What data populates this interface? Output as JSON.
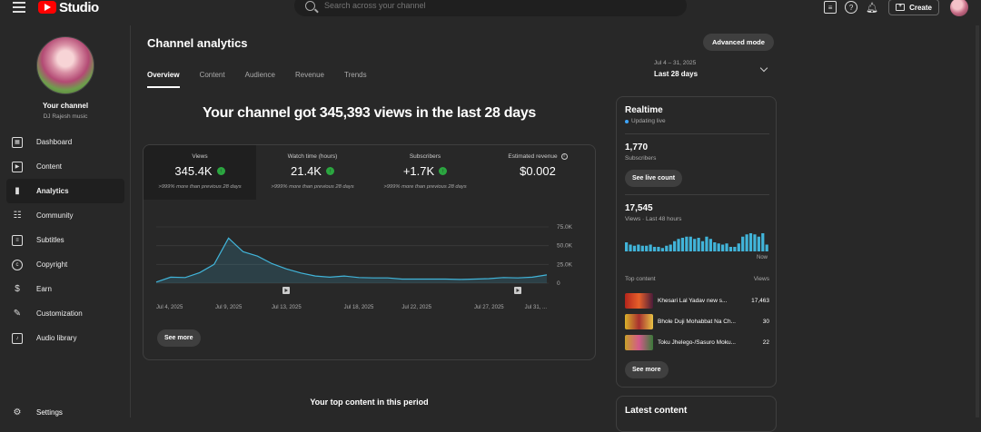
{
  "header": {
    "logo_text": "Studio",
    "search_placeholder": "Search across your channel",
    "create_label": "Create"
  },
  "sidebar": {
    "channel_title": "Your channel",
    "channel_name": "DJ Rajesh music",
    "items": [
      {
        "label": "Dashboard",
        "icon": "dashboard-icon"
      },
      {
        "label": "Content",
        "icon": "content-icon"
      },
      {
        "label": "Analytics",
        "icon": "analytics-icon",
        "active": true
      },
      {
        "label": "Community",
        "icon": "community-icon"
      },
      {
        "label": "Subtitles",
        "icon": "subtitles-icon"
      },
      {
        "label": "Copyright",
        "icon": "copyright-icon"
      },
      {
        "label": "Earn",
        "icon": "earn-icon"
      },
      {
        "label": "Customization",
        "icon": "customization-icon"
      },
      {
        "label": "Audio library",
        "icon": "audio-library-icon"
      }
    ],
    "settings_label": "Settings"
  },
  "main": {
    "title": "Channel analytics",
    "advanced_mode": "Advanced mode",
    "tabs": [
      "Overview",
      "Content",
      "Audience",
      "Revenue",
      "Trends"
    ],
    "date_range": "Jul 4 – 31, 2025",
    "date_label": "Last 28 days",
    "headline": "Your channel got 345,393 views in the last 28 days",
    "metrics": [
      {
        "label": "Views",
        "value": "345.4K",
        "compare": ">999% more than previous 28 days",
        "up": true
      },
      {
        "label": "Watch time (hours)",
        "value": "21.4K",
        "compare": ">999% more than previous 28 days",
        "up": true
      },
      {
        "label": "Subscribers",
        "value": "+1.7K",
        "compare": ">999% more than previous 28 days",
        "up": true
      },
      {
        "label": "Estimated revenue",
        "value": "$0.002",
        "compare": "",
        "up": false
      }
    ],
    "see_more": "See more",
    "top_content_title": "Your top content in this period"
  },
  "chart_data": {
    "type": "area",
    "x": [
      "Jul 4, 2025",
      "Jul 5",
      "Jul 6",
      "Jul 7",
      "Jul 8",
      "Jul 9, 2025",
      "Jul 10",
      "Jul 11",
      "Jul 12",
      "Jul 13, 2025",
      "Jul 14",
      "Jul 15",
      "Jul 16",
      "Jul 17",
      "Jul 18, 2025",
      "Jul 19",
      "Jul 20",
      "Jul 21",
      "Jul 22, 2025",
      "Jul 23",
      "Jul 24",
      "Jul 25",
      "Jul 26",
      "Jul 27, 2025",
      "Jul 28",
      "Jul 29",
      "Jul 30",
      "Jul 31, ..."
    ],
    "values": [
      1500,
      8000,
      7500,
      14000,
      25000,
      60000,
      42000,
      36000,
      26000,
      19000,
      13500,
      9500,
      8000,
      9500,
      7500,
      7000,
      7000,
      5500,
      5500,
      5500,
      5500,
      5000,
      5500,
      6000,
      7500,
      7000,
      8000,
      11000
    ],
    "tick_labels": [
      "Jul 4, 2025",
      "Jul 9, 2025",
      "Jul 13, 2025",
      "Jul 18, 2025",
      "Jul 22, 2025",
      "Jul 27, 2025",
      "Jul 31, ..."
    ],
    "y_ticks": [
      "75.0K",
      "50.0K",
      "25.0K",
      "0"
    ],
    "ylim": [
      0,
      75000
    ],
    "color": "#41b4d9",
    "grid": true
  },
  "realtime": {
    "title": "Realtime",
    "status": "Updating live",
    "subscribers": "1,770",
    "subscribers_label": "Subscribers",
    "see_live_count": "See live count",
    "views": "17,545",
    "views_label": "Views · Last 48 hours",
    "now_label": "Now",
    "bars": [
      8,
      6,
      5,
      6,
      5,
      5,
      6,
      4,
      4,
      3,
      5,
      6,
      9,
      11,
      12,
      13,
      13,
      11,
      12,
      9,
      13,
      11,
      8,
      7,
      6,
      7,
      4,
      4,
      7,
      13,
      15,
      16,
      15,
      13,
      16,
      6
    ],
    "top_content_label": "Top content",
    "views_col": "Views",
    "items": [
      {
        "title": "Khesari Lal Yadav new s...",
        "views": "17,463"
      },
      {
        "title": "Bhole Duji Mohabbat Na Ch...",
        "views": "30"
      },
      {
        "title": "Toku Jhelego-/Sasuro Moku...",
        "views": "22"
      }
    ],
    "see_more": "See more"
  },
  "latest": {
    "title": "Latest content"
  }
}
